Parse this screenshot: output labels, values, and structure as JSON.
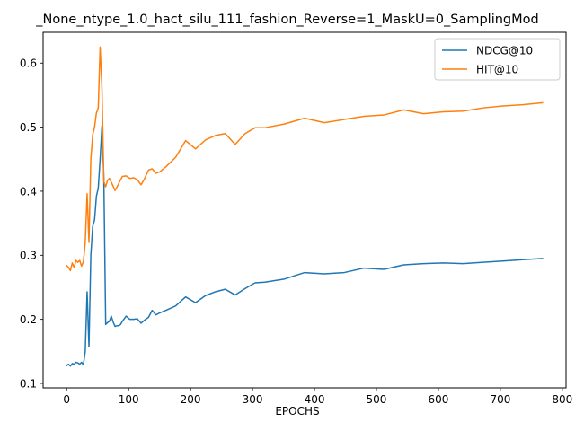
{
  "chart_data": {
    "type": "line",
    "title": "_None_ntype_1.0_hact_silu_111_fashion_Reverse=1_MaskU=0_SamplingMod",
    "xlabel": "EPOCHS",
    "ylabel": "",
    "xlim": [
      -38,
      806
    ],
    "ylim": [
      0.093,
      0.648
    ],
    "xticks": [
      0,
      100,
      200,
      300,
      400,
      500,
      600,
      700,
      800
    ],
    "yticks": [
      0.1,
      0.2,
      0.3,
      0.4,
      0.5,
      0.6
    ],
    "xtick_labels": [
      "0",
      "100",
      "200",
      "300",
      "400",
      "500",
      "600",
      "700",
      "800"
    ],
    "ytick_labels": [
      "0.1",
      "0.2",
      "0.3",
      "0.4",
      "0.5",
      "0.6"
    ],
    "grid": false,
    "legend_position": "top-right",
    "series": [
      {
        "name": "NDCG@10",
        "color": "#1f77b4",
        "x": [
          0,
          3,
          6,
          9,
          12,
          15,
          18,
          21,
          24,
          27,
          30,
          33,
          36,
          39,
          42,
          45,
          48,
          51,
          54,
          57,
          60,
          63,
          66,
          69,
          72,
          75,
          78,
          81,
          84,
          87,
          90,
          96,
          102,
          108,
          114,
          120,
          126,
          132,
          138,
          144,
          150,
          160,
          176,
          192,
          208,
          224,
          240,
          256,
          272,
          288,
          304,
          320,
          352,
          384,
          416,
          448,
          480,
          512,
          544,
          576,
          608,
          640,
          672,
          704,
          736,
          768
        ],
        "y": [
          0.128,
          0.13,
          0.127,
          0.131,
          0.13,
          0.133,
          0.132,
          0.13,
          0.133,
          0.129,
          0.15,
          0.243,
          0.157,
          0.3,
          0.345,
          0.355,
          0.392,
          0.405,
          0.45,
          0.502,
          0.42,
          0.192,
          0.195,
          0.197,
          0.205,
          0.196,
          0.189,
          0.19,
          0.19,
          0.192,
          0.197,
          0.205,
          0.2,
          0.2,
          0.201,
          0.194,
          0.199,
          0.203,
          0.214,
          0.207,
          0.21,
          0.214,
          0.221,
          0.235,
          0.226,
          0.237,
          0.243,
          0.247,
          0.238,
          0.248,
          0.257,
          0.258,
          0.263,
          0.273,
          0.271,
          0.273,
          0.28,
          0.278,
          0.285,
          0.287,
          0.288,
          0.287,
          0.289,
          0.291,
          0.293,
          0.295
        ]
      },
      {
        "name": "HIT@10",
        "color": "#ff7f0e",
        "x": [
          0,
          3,
          6,
          9,
          12,
          15,
          18,
          21,
          24,
          27,
          30,
          33,
          36,
          39,
          42,
          45,
          48,
          51,
          54,
          57,
          60,
          63,
          66,
          69,
          72,
          75,
          78,
          81,
          84,
          87,
          90,
          96,
          102,
          108,
          114,
          120,
          126,
          132,
          138,
          144,
          150,
          160,
          176,
          192,
          208,
          224,
          240,
          256,
          272,
          288,
          304,
          320,
          352,
          384,
          416,
          448,
          480,
          512,
          544,
          576,
          608,
          640,
          672,
          704,
          736,
          768
        ],
        "y": [
          0.284,
          0.281,
          0.276,
          0.288,
          0.281,
          0.292,
          0.289,
          0.292,
          0.283,
          0.29,
          0.32,
          0.396,
          0.32,
          0.45,
          0.488,
          0.5,
          0.522,
          0.53,
          0.625,
          0.56,
          0.415,
          0.407,
          0.417,
          0.42,
          0.414,
          0.408,
          0.401,
          0.406,
          0.412,
          0.418,
          0.423,
          0.424,
          0.42,
          0.421,
          0.418,
          0.41,
          0.42,
          0.433,
          0.435,
          0.428,
          0.43,
          0.438,
          0.453,
          0.479,
          0.466,
          0.48,
          0.487,
          0.49,
          0.473,
          0.49,
          0.499,
          0.499,
          0.505,
          0.514,
          0.507,
          0.512,
          0.517,
          0.519,
          0.527,
          0.521,
          0.524,
          0.525,
          0.53,
          0.533,
          0.535,
          0.538
        ]
      }
    ]
  }
}
